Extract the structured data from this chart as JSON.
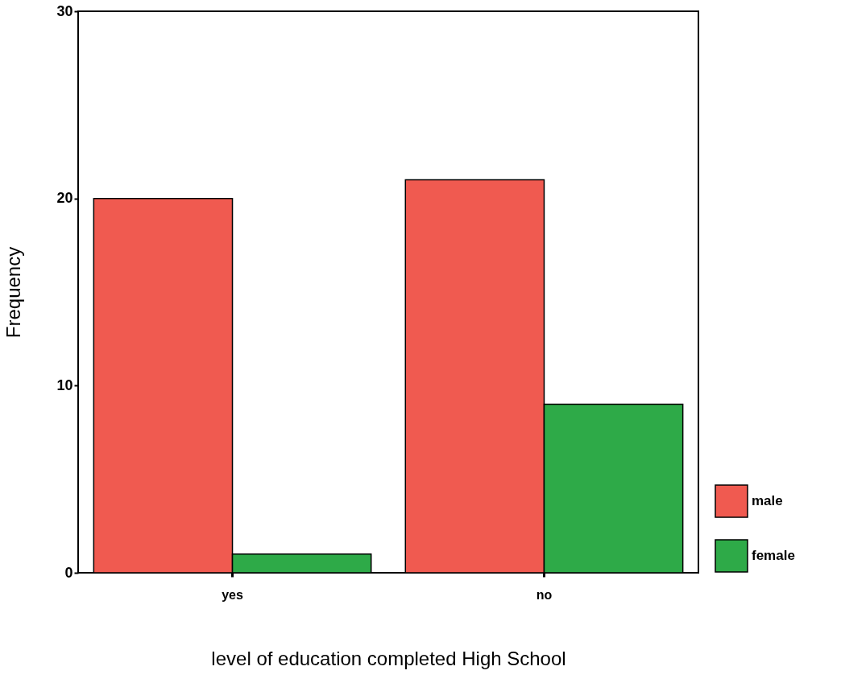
{
  "chart_data": {
    "type": "bar",
    "xlabel": "level of education completed High School",
    "ylabel": "Frequency",
    "categories": [
      "yes",
      "no"
    ],
    "series": [
      {
        "name": "male",
        "color": "#f05a50",
        "values": [
          20,
          21
        ]
      },
      {
        "name": "female",
        "color": "#2eaa48",
        "values": [
          1,
          9
        ]
      }
    ],
    "ylim": [
      0,
      30
    ],
    "yticks": [
      0,
      10,
      20,
      30
    ],
    "grid": false,
    "legend": "bottom right"
  }
}
